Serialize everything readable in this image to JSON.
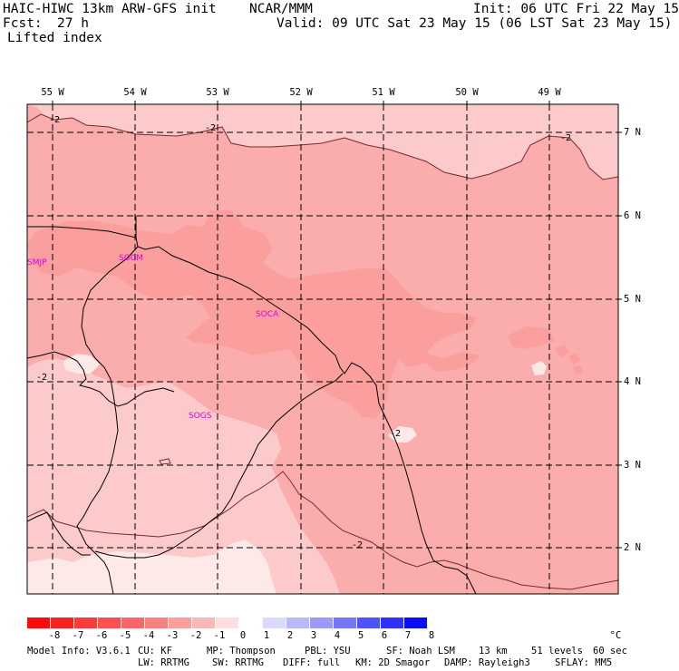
{
  "header": {
    "model": "HAIC-HIWC 13km ARW-GFS init",
    "org": "NCAR/MMM",
    "init": "Init: 06 UTC Fri 22 May 15",
    "forecast_label": "Fcst:",
    "forecast_hours": "27 h",
    "valid": "Valid: 09 UTC Sat 23 May 15 (06 LST Sat 23 May 15)",
    "field": "Lifted index"
  },
  "map": {
    "longitude_labels": [
      "55 W",
      "54 W",
      "53 W",
      "52 W",
      "51 W",
      "50 W",
      "49 W"
    ],
    "latitude_labels": [
      "7 N",
      "6 N",
      "5 N",
      "4 N",
      "3 N",
      "2 N"
    ],
    "stations": [
      "SMJP",
      "SOCM",
      "SOCA",
      "SOGS"
    ],
    "contour_labels": [
      "-2",
      "-2",
      "-2",
      "-2",
      "-2",
      "-2"
    ],
    "colors": {
      "level_m3": "#fa9e9e",
      "level_m2": "#fbacac",
      "level_m1": "#fccaca",
      "level_0": "#fee9e9",
      "land_boundary": "#000000",
      "gridline": "#000000"
    }
  },
  "legend": {
    "tick_labels": [
      "-8",
      "-7",
      "-6",
      "-5",
      "-4",
      "-3",
      "-2",
      "-1",
      "0",
      "1",
      "2",
      "3",
      "4",
      "5",
      "6",
      "7",
      "8"
    ],
    "unit": "°C",
    "colors": [
      "#ff0a0a",
      "#fd2020",
      "#fb3a3a",
      "#fa5050",
      "#fa6666",
      "#fa8080",
      "#fa9e9e",
      "#fbb8b8",
      "#fedede",
      "#ffffff",
      "#dadaff",
      "#b8b8fb",
      "#9a9afa",
      "#7575f8",
      "#5252fa",
      "#3030fb",
      "#0a0aff"
    ]
  },
  "footer": {
    "line1": [
      {
        "key": "model_info",
        "text": "Model Info: V3.6.1"
      },
      {
        "key": "cu",
        "text": "CU: KF"
      },
      {
        "key": "mp",
        "text": "MP: Thompson"
      },
      {
        "key": "pbl",
        "text": "PBL: YSU"
      },
      {
        "key": "sf",
        "text": "SF: Noah LSM"
      },
      {
        "key": "res",
        "text": "13 km"
      },
      {
        "key": "levels",
        "text": "51 levels"
      },
      {
        "key": "dt",
        "text": "60 sec"
      }
    ],
    "line2": [
      {
        "key": "lw",
        "text": "LW: RRTMG"
      },
      {
        "key": "sw",
        "text": "SW: RRTMG"
      },
      {
        "key": "diff",
        "text": "DIFF: full"
      },
      {
        "key": "km",
        "text": "KM: 2D Smagor"
      },
      {
        "key": "damp",
        "text": "DAMP: Rayleigh3"
      },
      {
        "key": "sflay",
        "text": "SFLAY: MM5"
      }
    ]
  }
}
